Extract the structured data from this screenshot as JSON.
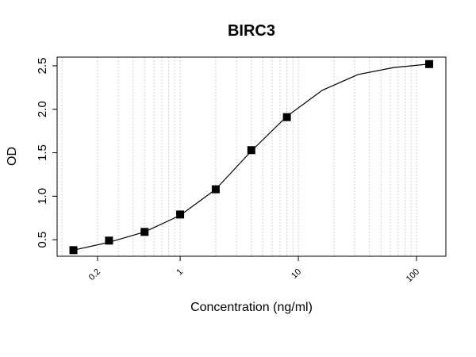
{
  "chart_data": {
    "type": "scatter",
    "title": "BIRC3",
    "xlabel": "Concentration (ng/ml)",
    "ylabel": "OD",
    "xscale": "log",
    "xlim": [
      0.091,
      177
    ],
    "ylim": [
      0.31,
      2.6
    ],
    "xticks": [
      0.2,
      1,
      10,
      100
    ],
    "yticks": [
      {
        "value": 0.5,
        "label": "0.5"
      },
      {
        "value": 1,
        "label": "1.0"
      },
      {
        "value": 1.5,
        "label": "1.5"
      },
      {
        "value": 2,
        "label": "2.0"
      },
      {
        "value": 2.5,
        "label": "2.5"
      }
    ],
    "xgrid": [
      0.1,
      0.2,
      0.3,
      0.4,
      0.5,
      0.6,
      0.7,
      0.8,
      0.9,
      1,
      2,
      3,
      4,
      5,
      6,
      7,
      8,
      9,
      10,
      20,
      30,
      40,
      50,
      60,
      70,
      80,
      90,
      100
    ],
    "grid": true,
    "series": [
      {
        "name": "points",
        "style": "marker",
        "color": "#000000",
        "x": [
          0.125,
          0.25,
          0.5,
          1,
          2,
          4,
          8,
          128
        ],
        "values": [
          0.38,
          0.49,
          0.59,
          0.79,
          1.08,
          1.53,
          1.91,
          2.52
        ]
      },
      {
        "name": "fit",
        "style": "line",
        "color": "#000000",
        "x": [
          0.125,
          0.25,
          0.5,
          1,
          2,
          4,
          8,
          16,
          32,
          64,
          128
        ],
        "values": [
          0.38,
          0.47,
          0.59,
          0.78,
          1.08,
          1.52,
          1.92,
          2.22,
          2.4,
          2.48,
          2.52
        ]
      }
    ]
  }
}
